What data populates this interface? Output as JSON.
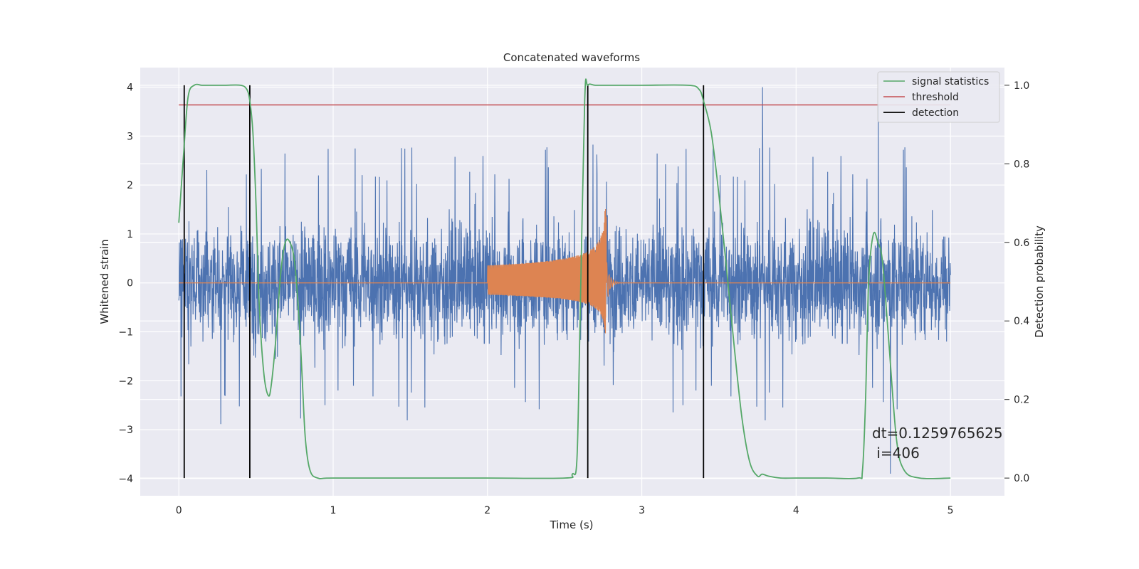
{
  "chart_data": {
    "type": "line",
    "title": "Concatenated waveforms",
    "xlabel": "Time (s)",
    "ylabel": "Whitened strain",
    "y2label": "Detection probability",
    "xlim": [
      -0.25,
      5.35
    ],
    "ylim": [
      -4.35,
      4.4
    ],
    "y2lim": [
      -0.045,
      1.045
    ],
    "xticks": [
      0,
      1,
      2,
      3,
      4,
      5
    ],
    "yticks": [
      -4,
      -3,
      -2,
      -1,
      0,
      1,
      2,
      3,
      4
    ],
    "y2ticks": [
      0.0,
      0.2,
      0.4,
      0.6,
      0.8,
      1.0
    ],
    "xtick_labels": [
      "0",
      "1",
      "2",
      "3",
      "4",
      "5"
    ],
    "ytick_labels": [
      "−4",
      "−3",
      "−2",
      "−1",
      "0",
      "1",
      "2",
      "3",
      "4"
    ],
    "y2tick_labels": [
      "0.0",
      "0.2",
      "0.4",
      "0.6",
      "0.8",
      "1.0"
    ],
    "grid": true,
    "legend_position": "top-right",
    "colors": {
      "background": "#eaeaf2",
      "grid": "#ffffff",
      "strain": "#4c72b0",
      "template": "#dd8452",
      "signal_statistics": "#55a868",
      "threshold": "#c44e52",
      "detection": "#000000"
    },
    "series": [
      {
        "name": "signal statistics",
        "axis": "right",
        "color": "#55a868",
        "x": [
          0.0,
          0.03,
          0.06,
          0.1,
          0.15,
          0.2,
          0.3,
          0.4,
          0.44,
          0.46,
          0.48,
          0.5,
          0.52,
          0.55,
          0.58,
          0.6,
          0.63,
          0.66,
          0.69,
          0.72,
          0.75,
          0.78,
          0.8,
          0.82,
          0.85,
          0.9,
          1.0,
          1.5,
          2.0,
          2.5,
          2.55,
          2.58,
          2.6,
          2.63,
          2.65,
          2.7,
          2.8,
          3.0,
          3.3,
          3.37,
          3.4,
          3.45,
          3.5,
          3.55,
          3.6,
          3.65,
          3.7,
          3.75,
          3.78,
          3.82,
          3.9,
          4.0,
          4.2,
          4.4,
          4.43,
          4.45,
          4.47,
          4.5,
          4.53,
          4.56,
          4.6,
          4.65,
          4.7,
          4.8,
          5.0
        ],
        "y": [
          0.65,
          0.82,
          0.97,
          1.0,
          1.0,
          1.0,
          1.0,
          1.0,
          0.99,
          0.96,
          0.88,
          0.7,
          0.45,
          0.27,
          0.21,
          0.24,
          0.36,
          0.52,
          0.6,
          0.6,
          0.55,
          0.4,
          0.25,
          0.1,
          0.02,
          0.0,
          0.0,
          0.0,
          0.0,
          0.0,
          0.01,
          0.05,
          0.4,
          0.96,
          1.0,
          1.0,
          1.0,
          1.0,
          1.0,
          0.99,
          0.96,
          0.88,
          0.72,
          0.53,
          0.33,
          0.15,
          0.04,
          0.005,
          0.01,
          0.005,
          0.0,
          0.0,
          0.0,
          0.0,
          0.02,
          0.2,
          0.5,
          0.62,
          0.6,
          0.55,
          0.35,
          0.1,
          0.02,
          0.0,
          0.0
        ]
      },
      {
        "name": "threshold",
        "axis": "right",
        "color": "#c44e52",
        "x": [
          0.0,
          5.0
        ],
        "y": [
          0.95,
          0.95
        ]
      },
      {
        "name": "detection",
        "axis": "right",
        "color": "#000000",
        "x": [
          0.035,
          0.46,
          2.65,
          3.4
        ],
        "y_range": [
          0.0,
          1.0
        ]
      },
      {
        "name": "",
        "axis": "left",
        "color": "#4c72b0",
        "kind": "noise",
        "x_range": [
          0.0,
          5.0
        ],
        "envelope": 2.3,
        "peak": 4.0
      },
      {
        "name": "",
        "axis": "left",
        "color": "#dd8452",
        "kind": "chirp",
        "x_start": 2.0,
        "x_merger": 2.77,
        "x_end": 3.0,
        "amp_start": 0.3,
        "amp_peak_pos": 1.55,
        "amp_peak_neg": -1.05
      }
    ],
    "annotation": "dt=0.1259765625\n i=406"
  }
}
